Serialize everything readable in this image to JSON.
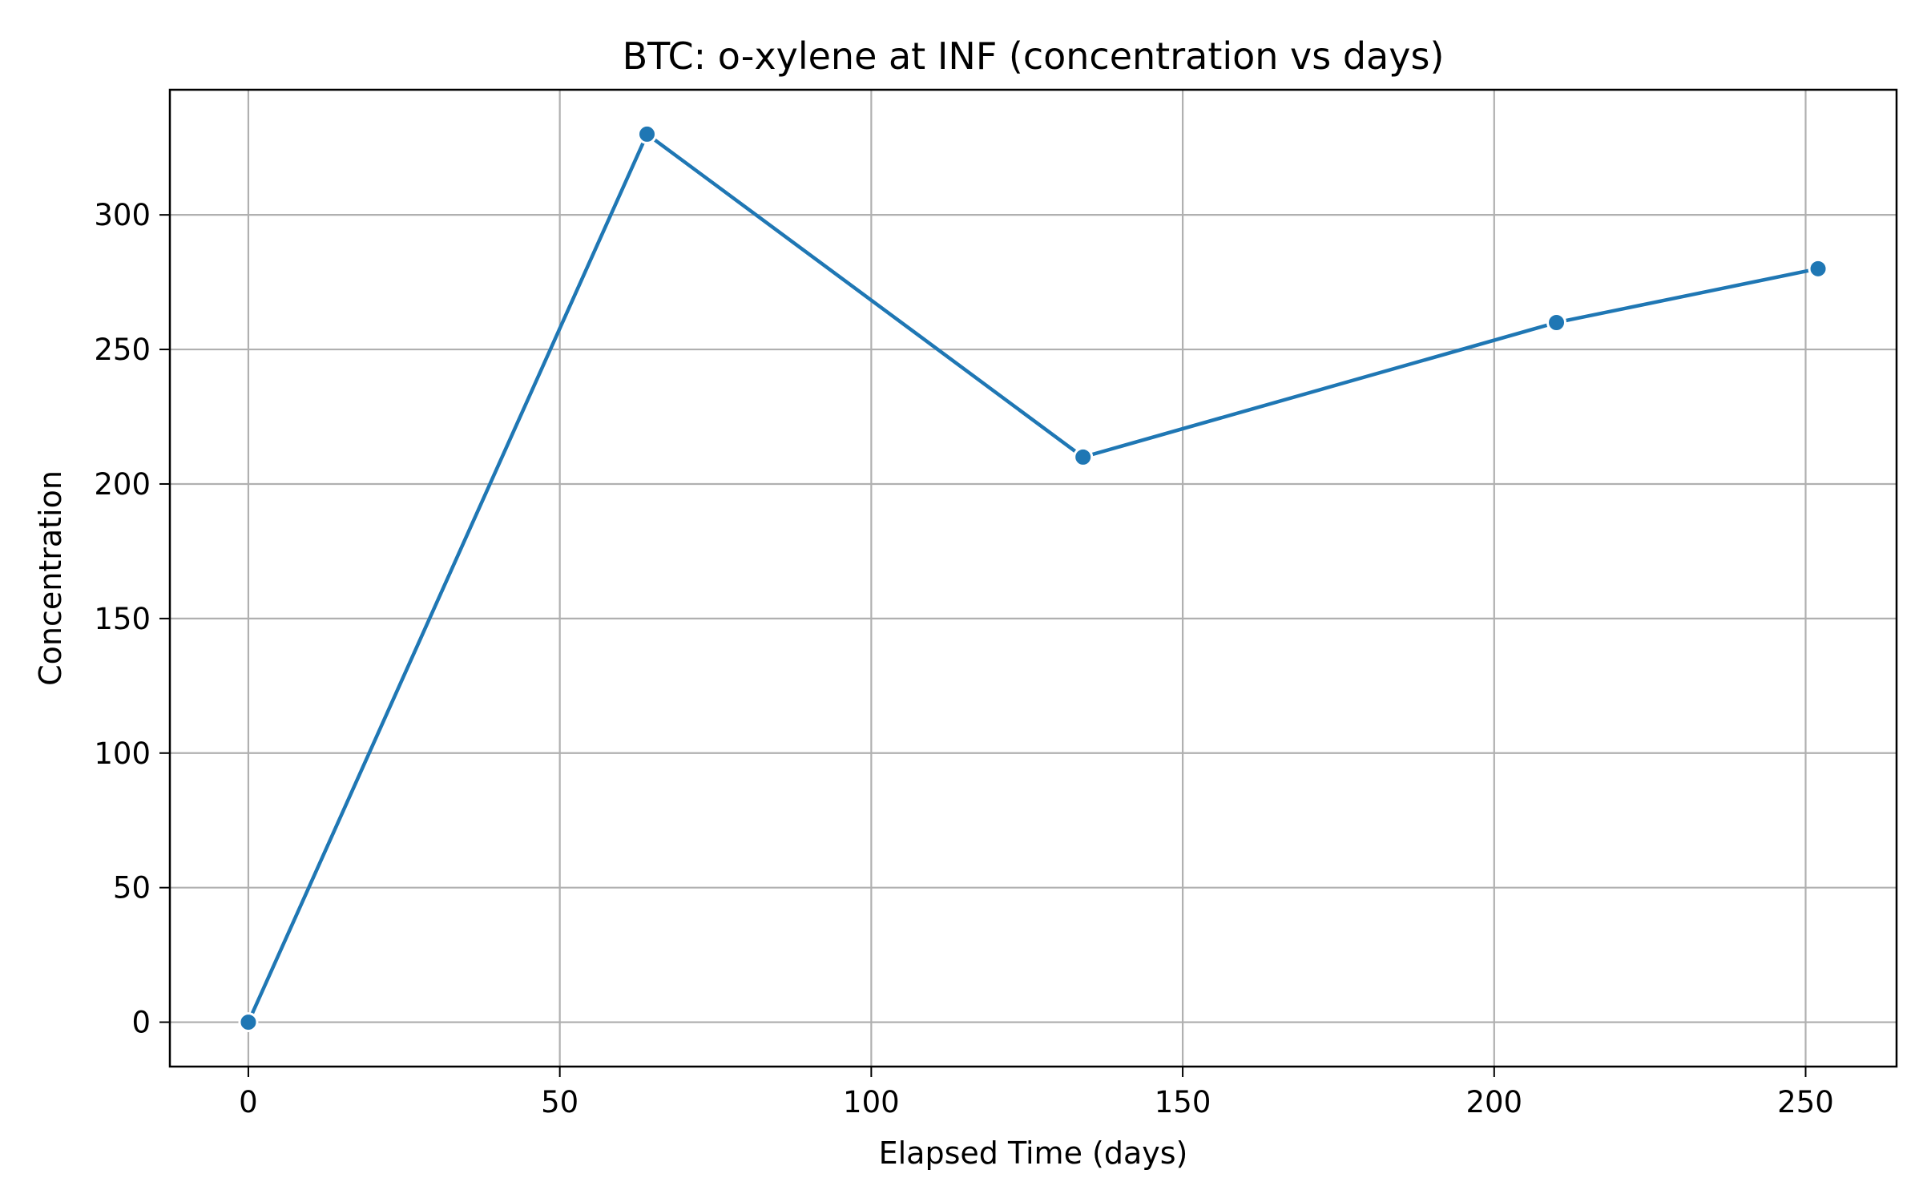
{
  "chart_data": {
    "type": "line",
    "title": "BTC: o-xylene at INF (concentration vs days)",
    "xlabel": "Elapsed Time (days)",
    "ylabel": "Concentration",
    "xlim": [
      -12.6,
      264.6
    ],
    "ylim": [
      -16.5,
      346.5
    ],
    "x_ticks": [
      0,
      50,
      100,
      150,
      200,
      250
    ],
    "y_ticks": [
      0,
      50,
      100,
      150,
      200,
      250,
      300
    ],
    "grid": true,
    "legend": "none",
    "series": [
      {
        "x": [
          0,
          64,
          134,
          210,
          252
        ],
        "y": [
          0,
          330,
          210,
          260,
          280
        ],
        "color": "#1f77b4",
        "marker": "circle"
      }
    ]
  }
}
